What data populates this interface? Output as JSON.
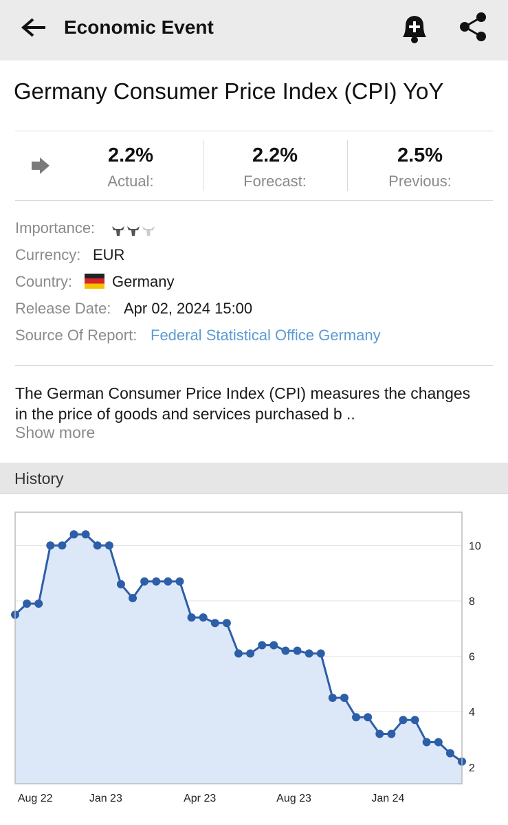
{
  "header": {
    "title": "Economic Event"
  },
  "event": {
    "title": "Germany Consumer Price Index (CPI) YoY",
    "stats": [
      {
        "value": "2.2%",
        "label": "Actual:"
      },
      {
        "value": "2.2%",
        "label": "Forecast:"
      },
      {
        "value": "2.5%",
        "label": "Previous:"
      }
    ]
  },
  "details": [
    {
      "label": "Importance:"
    },
    {
      "label": "Currency:",
      "value": "EUR"
    },
    {
      "label": "Country:",
      "value": "Germany"
    },
    {
      "label": "Release Date:",
      "value": "Apr 02, 2024 15:00"
    },
    {
      "label": "Source Of Report:",
      "value": "Federal Statistical Office Germany"
    }
  ],
  "description": "The German Consumer Price Index (CPI) measures the changes in the price of goods and services purchased b ..",
  "show_more": "Show more",
  "history_title": "History",
  "chart_data": {
    "type": "line",
    "categories": [
      null,
      null,
      "Aug 22",
      null,
      null,
      null,
      null,
      null,
      "Jan 23",
      null,
      null,
      null,
      null,
      null,
      null,
      null,
      "Apr 23",
      null,
      null,
      null,
      null,
      null,
      null,
      null,
      "Aug 23",
      null,
      null,
      null,
      null,
      null,
      null,
      null,
      "Jan 24",
      null,
      null,
      null,
      null,
      null,
      null
    ],
    "series": [
      {
        "color": "#2d5ea8",
        "values": [
          7.5,
          7.9,
          7.9,
          10.0,
          10.0,
          10.4,
          10.4,
          10.0,
          10.0,
          8.6,
          8.1,
          8.7,
          8.7,
          8.7,
          8.7,
          7.4,
          7.4,
          7.2,
          7.2,
          6.1,
          6.1,
          6.4,
          6.4,
          6.2,
          6.2,
          6.1,
          6.1,
          4.5,
          4.5,
          3.8,
          3.8,
          3.2,
          3.2,
          3.7,
          3.7,
          2.9,
          2.9,
          2.5,
          2.2
        ]
      }
    ],
    "ylim": [
      1.4,
      11.2
    ],
    "yticks": [
      2,
      4,
      6,
      8,
      10
    ],
    "grid": true,
    "area_color": "#dce7f8"
  }
}
